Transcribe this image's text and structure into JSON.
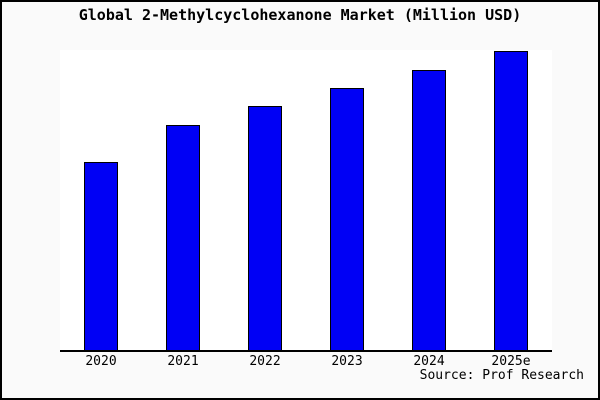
{
  "title": "Global 2-Methylcyclohexanone Market (Million USD)",
  "source": "Source: Prof Research",
  "colors": {
    "bar_fill": "#0000F5",
    "bar_border": "#000000",
    "figure_background": "#fafafa",
    "plot_background": "#ffffff",
    "axis_line": "#000000",
    "figure_border": "#000000",
    "text": "#000000"
  },
  "chart_data": {
    "type": "bar",
    "title": "Global 2-Methylcyclohexanone Market (Million USD)",
    "categories": [
      "2020",
      "2021",
      "2022",
      "2023",
      "2024",
      "2025e"
    ],
    "values": [
      62.6,
      75.0,
      81.3,
      87.5,
      93.5,
      99.7
    ],
    "value_basis": "percent of plot height; no y-axis, gridlines or value labels are shown in the chart",
    "xlabel": "",
    "ylabel": "",
    "ylim": [
      0,
      100
    ],
    "grid": false,
    "legend": false,
    "y_axis_shown": false,
    "annotations": [
      "Source: Prof Research"
    ]
  }
}
